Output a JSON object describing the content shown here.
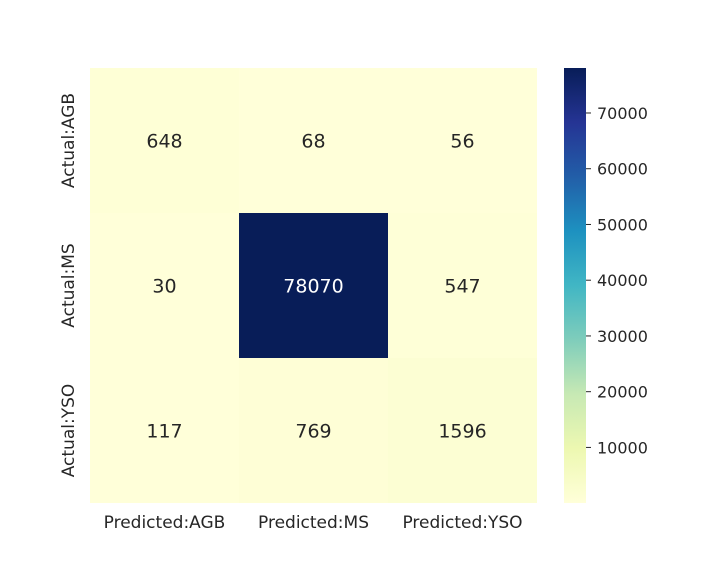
{
  "chart_data": {
    "type": "heatmap",
    "title": "",
    "xlabel": "",
    "ylabel": "",
    "x_categories": [
      "Predicted:AGB",
      "Predicted:MS",
      "Predicted:YSO"
    ],
    "y_categories": [
      "Actual:AGB",
      "Actual:MS",
      "Actual:YSO"
    ],
    "values": [
      [
        648,
        68,
        56
      ],
      [
        30,
        78070,
        547
      ],
      [
        117,
        769,
        1596
      ]
    ],
    "cell_labels": [
      [
        "648",
        "68",
        "56"
      ],
      [
        "30",
        "78070",
        "547"
      ],
      [
        "117",
        "769",
        "1596"
      ]
    ],
    "colormap": "YlGnBu",
    "colormap_stops": [
      "#ffffd9",
      "#edf8b1",
      "#c7e9b4",
      "#7fcdbb",
      "#41b6c4",
      "#1d91c0",
      "#225ea8",
      "#253494",
      "#081d58"
    ],
    "color_range": [
      30,
      78070
    ],
    "colorbar": {
      "ticks": [
        10000,
        20000,
        30000,
        40000,
        50000,
        60000,
        70000
      ],
      "tick_labels": [
        "10000",
        "20000",
        "30000",
        "40000",
        "50000",
        "60000",
        "70000"
      ]
    },
    "grid": false
  }
}
